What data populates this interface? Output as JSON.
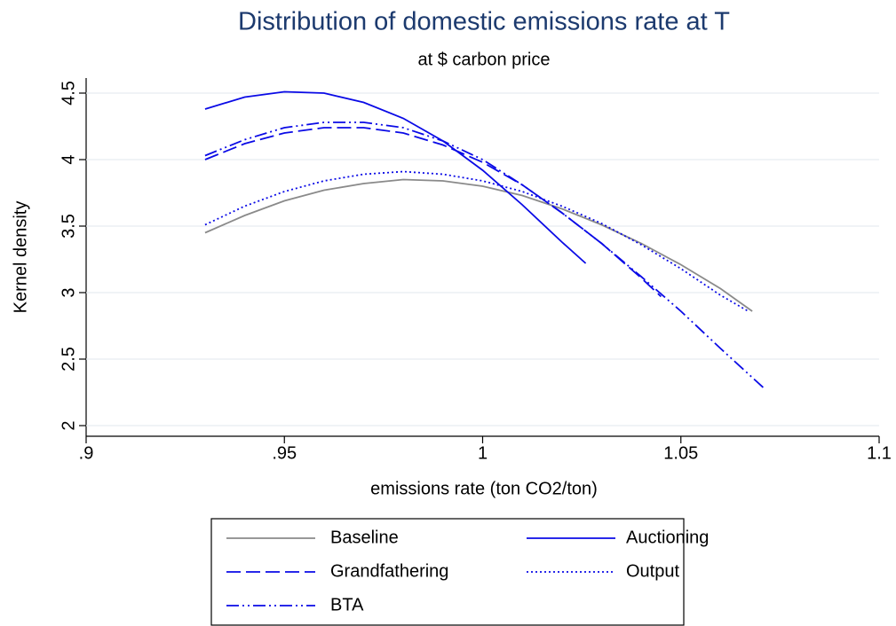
{
  "chart_data": {
    "type": "line",
    "title": "Distribution of domestic emissions rate at T",
    "subtitle": "at $ carbon price",
    "x_label": "emissions rate (ton CO2/ton)",
    "y_label": "Kernel density",
    "xlim": [
      0.9,
      1.1
    ],
    "xticks": [
      {
        "value": 0.9,
        "label": ".9"
      },
      {
        "value": 0.95,
        "label": ".95"
      },
      1,
      1.05,
      1.1
    ],
    "ylim": [
      2,
      4.5
    ],
    "yticks": [
      2,
      2.5,
      3,
      3.5,
      4,
      4.5
    ],
    "grid": true,
    "legend_position": "bottom",
    "series": [
      {
        "name": "Baseline",
        "color": "#8a8a8a",
        "line_style": "solid",
        "x": [
          0.93,
          0.94,
          0.95,
          0.96,
          0.97,
          0.98,
          0.99,
          1.0,
          1.01,
          1.02,
          1.03,
          1.04,
          1.05,
          1.06,
          1.068
        ],
        "values": [
          3.45,
          3.58,
          3.69,
          3.77,
          3.82,
          3.85,
          3.84,
          3.8,
          3.73,
          3.63,
          3.51,
          3.37,
          3.21,
          3.03,
          2.86
        ]
      },
      {
        "name": "Auctioning",
        "color": "#0a0ae6",
        "line_style": "solid",
        "x": [
          0.93,
          0.94,
          0.95,
          0.96,
          0.97,
          0.98,
          0.99,
          1.0,
          1.01,
          1.02,
          1.026
        ],
        "values": [
          4.38,
          4.47,
          4.51,
          4.5,
          4.43,
          4.31,
          4.14,
          3.92,
          3.66,
          3.38,
          3.22
        ]
      },
      {
        "name": "Grandfathering",
        "color": "#0a0ae6",
        "line_style": "dash",
        "x": [
          0.93,
          0.94,
          0.95,
          0.96,
          0.97,
          0.98,
          0.99,
          1.0,
          1.01,
          1.02,
          1.03,
          1.04,
          1.045
        ],
        "values": [
          4.0,
          4.12,
          4.2,
          4.24,
          4.24,
          4.2,
          4.11,
          3.98,
          3.81,
          3.6,
          3.37,
          3.11,
          2.97
        ]
      },
      {
        "name": "Output",
        "color": "#0a0ae6",
        "line_style": "dot",
        "x": [
          0.93,
          0.94,
          0.95,
          0.96,
          0.97,
          0.98,
          0.99,
          1.0,
          1.01,
          1.02,
          1.03,
          1.04,
          1.05,
          1.06,
          1.067
        ],
        "values": [
          3.51,
          3.65,
          3.76,
          3.84,
          3.89,
          3.91,
          3.89,
          3.84,
          3.76,
          3.65,
          3.52,
          3.36,
          3.18,
          2.98,
          2.86
        ]
      },
      {
        "name": "BTA",
        "color": "#0a0ae6",
        "line_style": "dashdot",
        "x": [
          0.93,
          0.94,
          0.95,
          0.96,
          0.97,
          0.98,
          0.99,
          1.0,
          1.01,
          1.02,
          1.03,
          1.04,
          1.05,
          1.06,
          1.071
        ],
        "values": [
          4.03,
          4.15,
          4.24,
          4.28,
          4.28,
          4.24,
          4.14,
          4.0,
          3.81,
          3.6,
          3.37,
          3.12,
          2.86,
          2.58,
          2.28
        ]
      }
    ]
  }
}
